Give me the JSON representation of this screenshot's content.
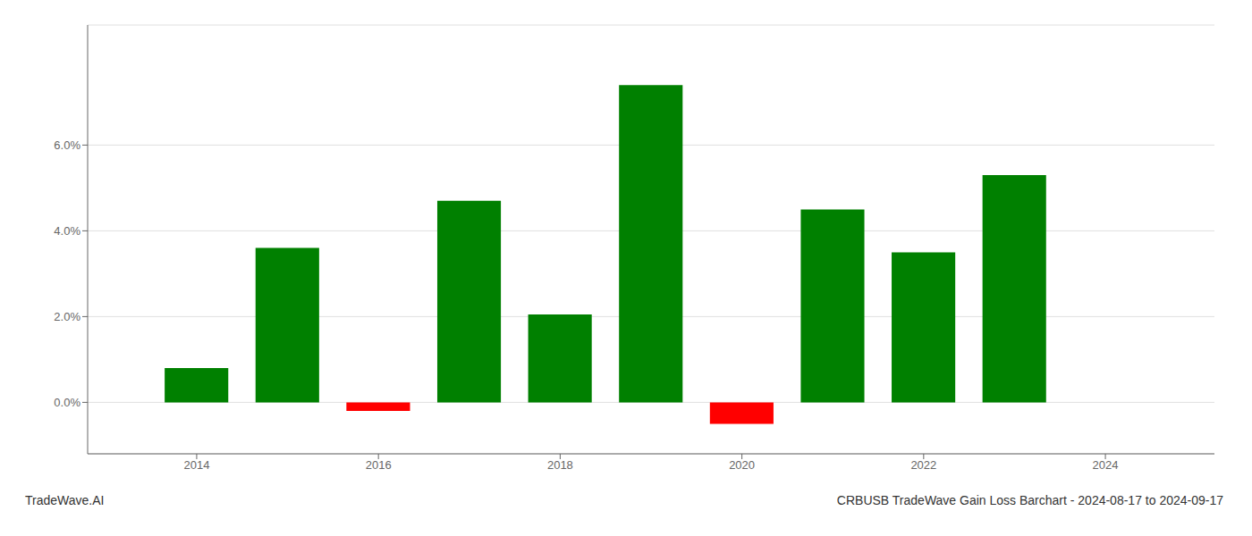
{
  "chart_data": {
    "type": "bar",
    "title": "CRBUSB TradeWave Gain Loss Barchart - 2024-08-17 to 2024-09-17",
    "annotations": [
      "TradeWave.AI"
    ],
    "x": [
      2014,
      2015,
      2016,
      2017,
      2018,
      2019,
      2020,
      2021,
      2022,
      2023
    ],
    "values": [
      0.008,
      0.036,
      -0.002,
      0.047,
      0.0205,
      0.074,
      -0.005,
      0.045,
      0.035,
      0.053
    ],
    "colors": [
      "#008000",
      "#008000",
      "#ff0000",
      "#008000",
      "#008000",
      "#008000",
      "#ff0000",
      "#008000",
      "#008000",
      "#008000"
    ],
    "xlim": [
      2012.8,
      2025.2
    ],
    "xticks": [
      2014,
      2016,
      2018,
      2020,
      2022,
      2024
    ],
    "ylim": [
      -0.012,
      0.088
    ],
    "yticks": [
      {
        "value": 0.0,
        "label": "0.0%"
      },
      {
        "value": 0.02,
        "label": "2.0%"
      },
      {
        "value": 0.04,
        "label": "4.0%"
      },
      {
        "value": 0.06,
        "label": "6.0%"
      }
    ],
    "grid": true
  }
}
